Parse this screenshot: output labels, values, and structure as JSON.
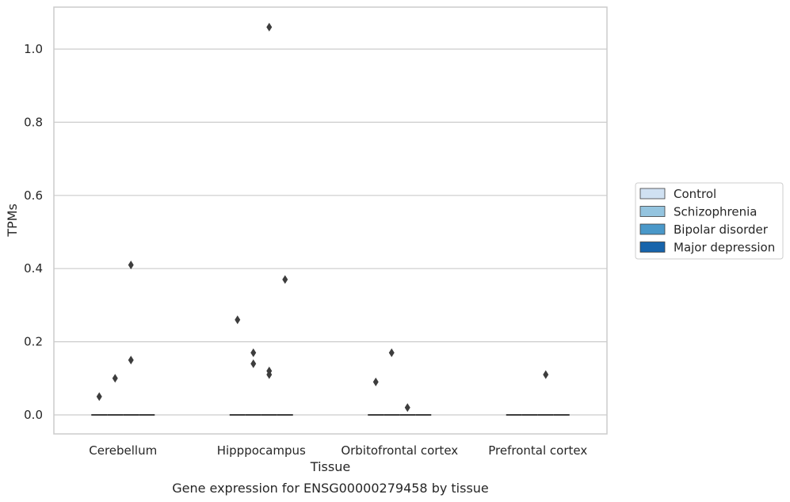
{
  "chart_data": {
    "type": "box",
    "title": "",
    "caption": "Gene expression for ENSG00000279458 by tissue",
    "xlabel": "Tissue",
    "ylabel": "TPMs",
    "ylim": [
      -0.05,
      1.12
    ],
    "yticks": [
      0.0,
      0.2,
      0.4,
      0.6,
      0.8,
      1.0
    ],
    "ytick_labels": [
      "0.0",
      "0.2",
      "0.4",
      "0.6",
      "0.8",
      "1.0"
    ],
    "grid": "horizontal",
    "legend_position": "right",
    "categories": [
      "Cerebellum",
      "Hipppocampus",
      "Orbitofrontal cortex",
      "Prefrontal cortex"
    ],
    "series": [
      {
        "name": "Control",
        "color": "#d0e1f2",
        "median": [
          0,
          0,
          0,
          0
        ],
        "outliers": [
          [
            0.05
          ],
          [
            0.26
          ],
          [
            0.09
          ],
          []
        ]
      },
      {
        "name": "Schizophrenia",
        "color": "#94c4df",
        "median": [
          0,
          0,
          0,
          0
        ],
        "outliers": [
          [
            0.1
          ],
          [
            0.17,
            0.14
          ],
          [
            0.17
          ],
          []
        ]
      },
      {
        "name": "Bipolar disorder",
        "color": "#4a98c9",
        "median": [
          0,
          0,
          0,
          0
        ],
        "outliers": [
          [
            0.41,
            0.15
          ],
          [
            1.06,
            0.12,
            0.11
          ],
          [
            0.02
          ],
          [
            0.11
          ]
        ]
      },
      {
        "name": "Major depression",
        "color": "#1764ab",
        "median": [
          0,
          0,
          0,
          0
        ],
        "outliers": [
          [],
          [
            0.37
          ],
          [],
          []
        ]
      }
    ]
  }
}
